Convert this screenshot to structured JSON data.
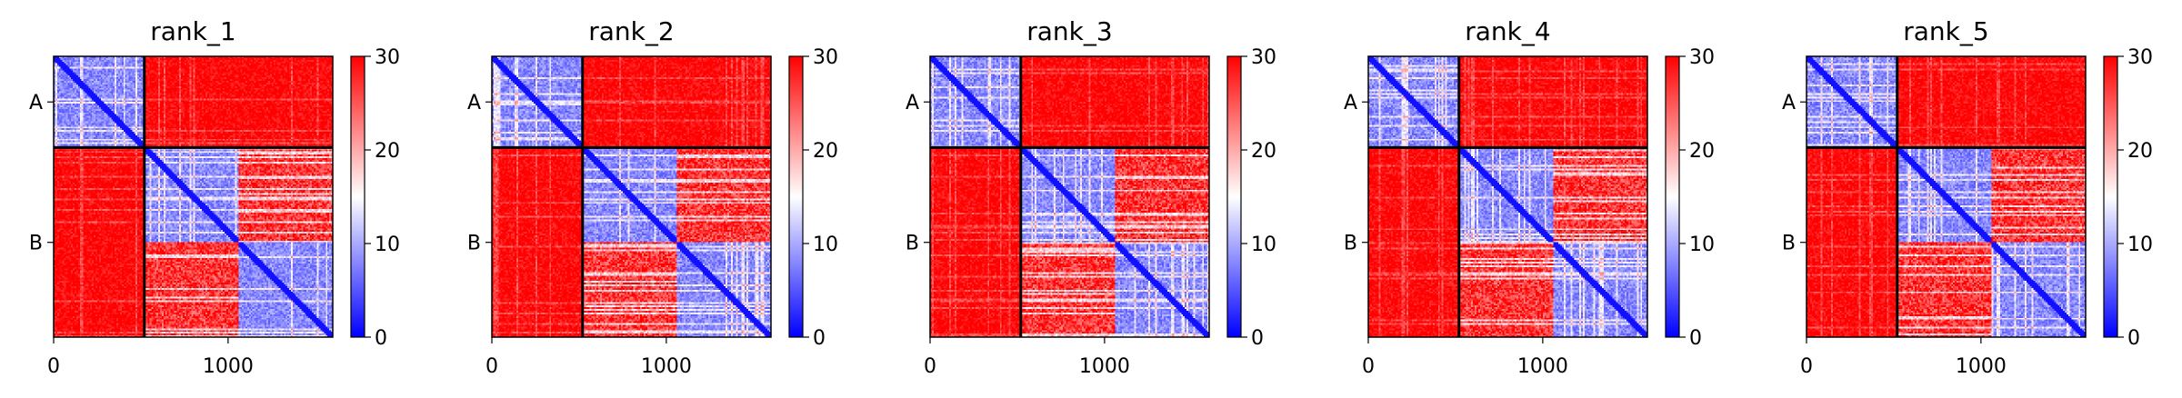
{
  "chart_data": [
    {
      "type": "heatmap",
      "title": "rank_1",
      "chains": [
        "A",
        "B"
      ],
      "chain_boundary": 520,
      "matrix_size": 1600,
      "x_ticks": [
        0,
        1000
      ],
      "x_tick_labels": [
        "0",
        "1000"
      ],
      "y_tick_labels": [
        "A",
        "B"
      ],
      "colorbar": {
        "range": [
          0,
          30
        ],
        "ticks": [
          0,
          10,
          20,
          30
        ],
        "colors": [
          "#0000ff",
          "#ffffff",
          "#ff0000"
        ]
      }
    },
    {
      "type": "heatmap",
      "title": "rank_2",
      "chains": [
        "A",
        "B"
      ],
      "chain_boundary": 520,
      "matrix_size": 1600,
      "x_ticks": [
        0,
        1000
      ],
      "x_tick_labels": [
        "0",
        "1000"
      ],
      "y_tick_labels": [
        "A",
        "B"
      ],
      "colorbar": {
        "range": [
          0,
          30
        ],
        "ticks": [
          0,
          10,
          20,
          30
        ],
        "colors": [
          "#0000ff",
          "#ffffff",
          "#ff0000"
        ]
      }
    },
    {
      "type": "heatmap",
      "title": "rank_3",
      "chains": [
        "A",
        "B"
      ],
      "chain_boundary": 520,
      "matrix_size": 1600,
      "x_ticks": [
        0,
        1000
      ],
      "x_tick_labels": [
        "0",
        "1000"
      ],
      "y_tick_labels": [
        "A",
        "B"
      ],
      "colorbar": {
        "range": [
          0,
          30
        ],
        "ticks": [
          0,
          10,
          20,
          30
        ],
        "colors": [
          "#0000ff",
          "#ffffff",
          "#ff0000"
        ]
      }
    },
    {
      "type": "heatmap",
      "title": "rank_4",
      "chains": [
        "A",
        "B"
      ],
      "chain_boundary": 520,
      "matrix_size": 1600,
      "x_ticks": [
        0,
        1000
      ],
      "x_tick_labels": [
        "0",
        "1000"
      ],
      "y_tick_labels": [
        "A",
        "B"
      ],
      "colorbar": {
        "range": [
          0,
          30
        ],
        "ticks": [
          0,
          10,
          20,
          30
        ],
        "colors": [
          "#0000ff",
          "#ffffff",
          "#ff0000"
        ]
      }
    },
    {
      "type": "heatmap",
      "title": "rank_5",
      "chains": [
        "A",
        "B"
      ],
      "chain_boundary": 520,
      "matrix_size": 1600,
      "x_ticks": [
        0,
        1000
      ],
      "x_tick_labels": [
        "0",
        "1000"
      ],
      "y_tick_labels": [
        "A",
        "B"
      ],
      "colorbar": {
        "range": [
          0,
          30
        ],
        "ticks": [
          0,
          10,
          20,
          30
        ],
        "colors": [
          "#0000ff",
          "#ffffff",
          "#ff0000"
        ]
      }
    }
  ]
}
